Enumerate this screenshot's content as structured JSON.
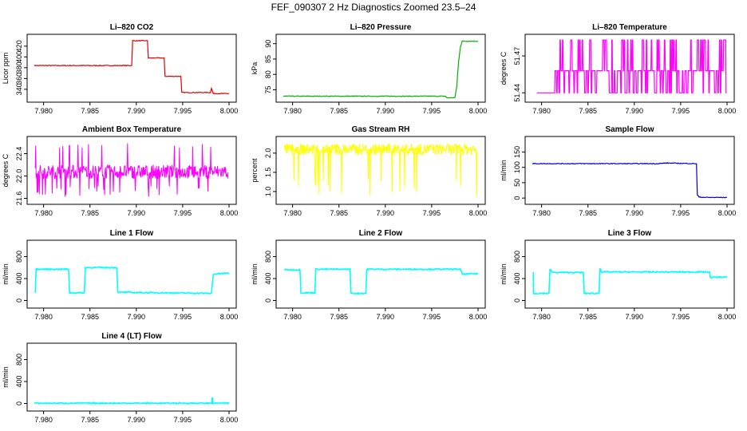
{
  "page": {
    "title": "FEF_090307  2 Hz Diagnostics Zoomed 23.5–24"
  },
  "chart_data": [
    {
      "type": "line",
      "title": "Li–820 CO2",
      "ylabel": "Licor ppm",
      "color": "#e00000",
      "xlim": [
        7.979,
        8.0
      ],
      "ylim": [
        322,
        436
      ],
      "xticks": [
        "7.980",
        "7.985",
        "7.990",
        "7.995",
        "8.000"
      ],
      "yticks": [
        "340",
        "360",
        "380",
        "400",
        "420"
      ],
      "series": [
        {
          "x": [
            7.979,
            7.9895,
            7.9896,
            7.9912,
            7.9913,
            7.993,
            7.9931,
            7.9948,
            7.9949,
            7.998,
            7.9981,
            7.9983,
            8.0
          ],
          "y": [
            384,
            384,
            430,
            430,
            398,
            398,
            364,
            364,
            334,
            334,
            342,
            332,
            332
          ]
        }
      ]
    },
    {
      "type": "line",
      "title": "Li–820 Pressure",
      "ylabel": "kPa",
      "color": "#00b000",
      "xlim": [
        7.979,
        8.0
      ],
      "ylim": [
        72,
        92
      ],
      "xticks": [
        "7.980",
        "7.985",
        "7.990",
        "7.995",
        "8.000"
      ],
      "yticks": [
        "75",
        "80",
        "85",
        "90"
      ],
      "series": [
        {
          "x": [
            7.979,
            7.9965,
            7.9966,
            7.9975,
            7.9977,
            7.9979,
            7.9981,
            7.9983,
            8.0
          ],
          "y": [
            72.9,
            72.9,
            72.4,
            72.4,
            76,
            84,
            89,
            90.8,
            90.8
          ]
        }
      ]
    },
    {
      "type": "line",
      "title": "Li–820 Temperature",
      "ylabel": "degrees C",
      "color": "#ff00ff",
      "xlim": [
        7.979,
        8.0
      ],
      "ylim": [
        51.435,
        51.485
      ],
      "xticks": [
        "7.980",
        "7.985",
        "7.990",
        "7.995",
        "8.000"
      ],
      "yticks": [
        "51.44",
        "51.47"
      ],
      "levels": [
        51.44,
        51.458,
        51.483
      ],
      "series": [
        {
          "x": [
            7.9795,
            8.0
          ],
          "y": [
            51.44,
            51.458
          ]
        }
      ]
    },
    {
      "type": "line",
      "title": "Ambient Box Temperature",
      "ylabel": "degrees C",
      "color": "#ff00ff",
      "xlim": [
        7.979,
        8.0
      ],
      "ylim": [
        21.55,
        22.65
      ],
      "xticks": [
        "7.980",
        "7.985",
        "7.990",
        "7.995",
        "8.000"
      ],
      "yticks": [
        "21.6",
        "22.0",
        "22.4"
      ],
      "series": [
        {
          "x": [
            7.979,
            8.0
          ],
          "y": [
            21.95,
            22.2
          ]
        }
      ]
    },
    {
      "type": "line",
      "title": "Gas Stream RH",
      "ylabel": "percent",
      "color": "#ffff00",
      "xlim": [
        7.979,
        8.0
      ],
      "ylim": [
        0.75,
        2.35
      ],
      "xticks": [
        "7.980",
        "7.985",
        "7.990",
        "7.995",
        "8.000"
      ],
      "yticks": [
        "1.0",
        "1.5",
        "2.0"
      ],
      "series": [
        {
          "x": [
            7.979,
            8.0
          ],
          "y": [
            1.95,
            2.25
          ]
        }
      ]
    },
    {
      "type": "line",
      "title": "Sample Flow",
      "ylabel": "ml/min",
      "color": "#0000cc",
      "xlim": [
        7.979,
        8.0
      ],
      "ylim": [
        -10,
        190
      ],
      "xticks": [
        "7.980",
        "7.985",
        "7.990",
        "7.995",
        "8.000"
      ],
      "yticks": [
        "0",
        "50",
        "100",
        "150"
      ],
      "series": [
        {
          "x": [
            7.979,
            7.9925,
            7.9935,
            7.9967,
            7.9968,
            7.997,
            7.998,
            8.0
          ],
          "y": [
            112,
            112,
            114,
            112,
            10,
            3,
            2,
            2
          ]
        }
      ]
    },
    {
      "type": "line",
      "title": "Line 1 Flow",
      "ylabel": "ml/min",
      "color": "#00ffff",
      "xlim": [
        7.979,
        8.0
      ],
      "ylim": [
        -80,
        1040
      ],
      "xticks": [
        "7.980",
        "7.985",
        "7.990",
        "7.995",
        "8.000"
      ],
      "yticks": [
        "0",
        "400",
        "800"
      ],
      "series": [
        {
          "x": [
            7.9791,
            7.9792,
            7.9827,
            7.9828,
            7.9844,
            7.9845,
            7.9879,
            7.988,
            7.9981,
            7.9983,
            8.0
          ],
          "y": [
            150,
            570,
            570,
            140,
            140,
            600,
            600,
            150,
            130,
            480,
            500
          ]
        }
      ]
    },
    {
      "type": "line",
      "title": "Line 2 Flow",
      "ylabel": "ml/min",
      "color": "#00ffff",
      "xlim": [
        7.979,
        8.0
      ],
      "ylim": [
        -80,
        1040
      ],
      "xticks": [
        "7.980",
        "7.985",
        "7.990",
        "7.995",
        "8.000"
      ],
      "yticks": [
        "0",
        "400",
        "800"
      ],
      "series": [
        {
          "x": [
            7.9791,
            7.9808,
            7.9809,
            7.9824,
            7.9825,
            7.9862,
            7.9863,
            7.9879,
            7.988,
            7.9981,
            7.9983,
            8.0
          ],
          "y": [
            560,
            560,
            140,
            140,
            570,
            570,
            130,
            130,
            570,
            570,
            480,
            490
          ]
        }
      ]
    },
    {
      "type": "line",
      "title": "Line 3 Flow",
      "ylabel": "ml/min",
      "color": "#00ffff",
      "xlim": [
        7.979,
        8.0
      ],
      "ylim": [
        -80,
        1040
      ],
      "xticks": [
        "7.980",
        "7.985",
        "7.990",
        "7.995",
        "8.000"
      ],
      "yticks": [
        "0",
        "400",
        "800"
      ],
      "series": [
        {
          "x": [
            7.9791,
            7.97912,
            7.97915,
            7.9808,
            7.9809,
            7.9812,
            7.9845,
            7.9846,
            7.9862,
            7.9863,
            7.9865,
            7.9981,
            7.9982,
            8.0
          ],
          "y": [
            520,
            130,
            130,
            130,
            570,
            510,
            510,
            130,
            130,
            590,
            520,
            520,
            420,
            430
          ]
        }
      ]
    },
    {
      "type": "line",
      "title": "Line 4 (LT) Flow",
      "ylabel": "ml/min",
      "color": "#00ffff",
      "xlim": [
        7.979,
        8.0
      ],
      "ylim": [
        -80,
        1040
      ],
      "xticks": [
        "7.980",
        "7.985",
        "7.990",
        "7.995",
        "8.000"
      ],
      "yticks": [
        "0",
        "400",
        "800"
      ],
      "series": [
        {
          "x": [
            7.979,
            7.99815,
            7.9982,
            7.99825,
            7.9983,
            8.0
          ],
          "y": [
            5,
            5,
            120,
            10,
            5,
            5
          ]
        }
      ]
    }
  ]
}
